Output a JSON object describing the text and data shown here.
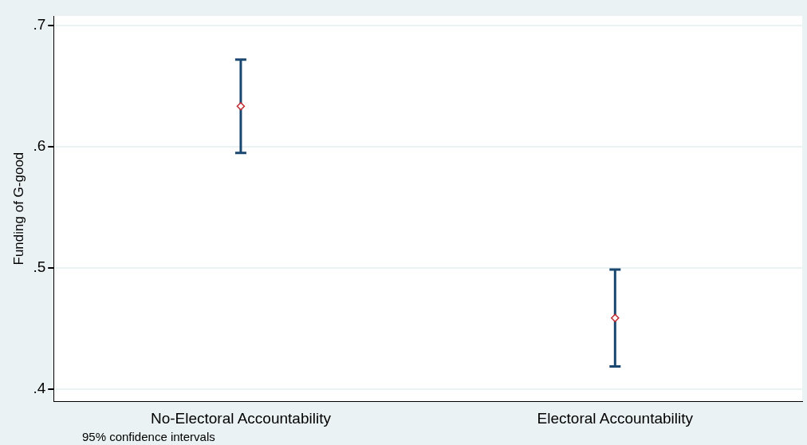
{
  "chart_data": {
    "type": "scatter",
    "ylabel": "Funding of G-good",
    "categories": [
      "No-Electoral Accountability",
      "Electoral Accountability"
    ],
    "series": [
      {
        "color": "#c1272d",
        "values": [
          0.6335,
          0.4587
        ],
        "errors": [
          [
            0.595,
            0.672
          ],
          [
            0.4187,
            0.4987
          ]
        ]
      }
    ],
    "ylim": [
      0.39,
      0.708
    ],
    "yticks": [
      {
        "value": 0.4,
        "label": ".4"
      },
      {
        "value": 0.5,
        "label": ".5"
      },
      {
        "value": 0.6,
        "label": ".6"
      },
      {
        "value": 0.7,
        "label": ".7"
      }
    ],
    "grid": "y",
    "marker": "diamond",
    "legend": false,
    "annotations": [
      "95% confidence intervals"
    ]
  }
}
